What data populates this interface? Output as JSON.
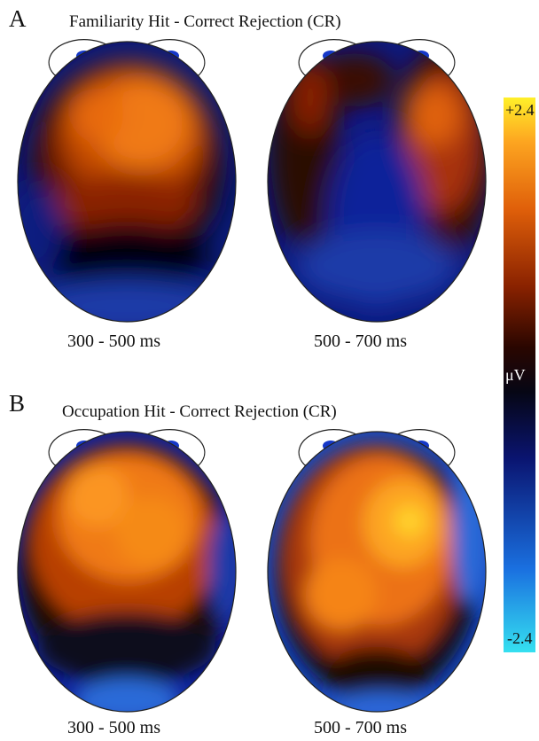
{
  "panels": [
    {
      "letter": "A",
      "title": "Familiarity Hit - Correct Rejection (CR)",
      "maps": [
        {
          "time_window": "300 - 500 ms"
        },
        {
          "time_window": "500 - 700 ms"
        }
      ]
    },
    {
      "letter": "B",
      "title": "Occupation Hit - Correct Rejection (CR)",
      "maps": [
        {
          "time_window": "300 - 500 ms"
        },
        {
          "time_window": "500 - 700 ms"
        }
      ]
    }
  ],
  "colorbar": {
    "max_label": "+2.4",
    "min_label": "-2.4",
    "unit": "μV",
    "range": [
      -2.4,
      2.4
    ],
    "colors": [
      "#35e0f0",
      "#1a70e0",
      "#0a1470",
      "#060614",
      "#2a0600",
      "#8a2200",
      "#e0600a",
      "#fda520",
      "#fff02a"
    ]
  }
}
